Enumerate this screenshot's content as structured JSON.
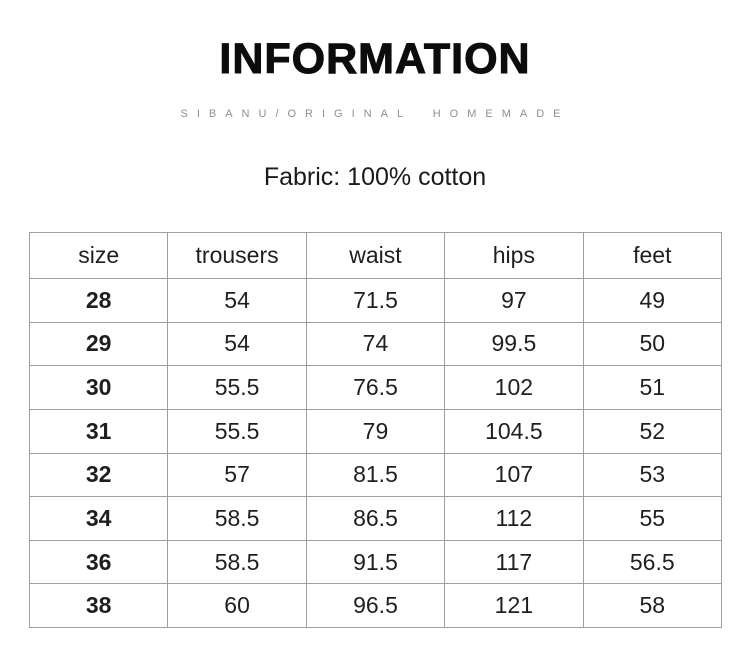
{
  "header": {
    "title": "INFORMATION",
    "subtitle": "SIBANU/ORIGINAL HOMEMADE",
    "fabric_note": "Fabric: 100% cotton"
  },
  "size_chart": {
    "columns": [
      "size",
      "trousers",
      "waist",
      "hips",
      "feet"
    ],
    "rows": [
      [
        "28",
        "54",
        "71.5",
        "97",
        "49"
      ],
      [
        "29",
        "54",
        "74",
        "99.5",
        "50"
      ],
      [
        "30",
        "55.5",
        "76.5",
        "102",
        "51"
      ],
      [
        "31",
        "55.5",
        "79",
        "104.5",
        "52"
      ],
      [
        "32",
        "57",
        "81.5",
        "107",
        "53"
      ],
      [
        "34",
        "58.5",
        "86.5",
        "112",
        "55"
      ],
      [
        "36",
        "58.5",
        "91.5",
        "117",
        "56.5"
      ],
      [
        "38",
        "60",
        "96.5",
        "121",
        "58"
      ]
    ]
  },
  "colors": {
    "text": "#1a1a1a",
    "muted": "#8f8f8f",
    "table_border": "#a0a0a0",
    "background": "#ffffff"
  }
}
